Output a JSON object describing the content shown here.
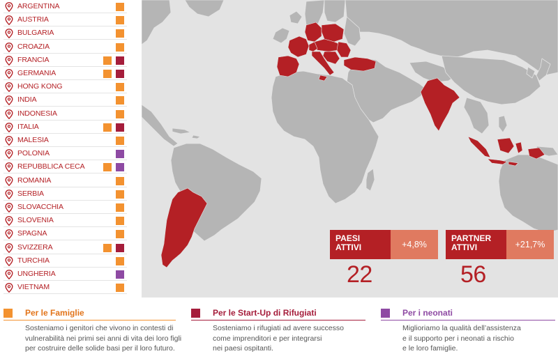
{
  "countries": [
    {
      "name": "ARGENTINA",
      "a": true,
      "b": null
    },
    {
      "name": "AUSTRIA",
      "a": true,
      "b": null
    },
    {
      "name": "BULGARIA",
      "a": true,
      "b": null
    },
    {
      "name": "CROAZIA",
      "a": true,
      "b": null
    },
    {
      "name": "FRANCIA",
      "a": true,
      "b": "refugee"
    },
    {
      "name": "GERMANIA",
      "a": true,
      "b": "refugee"
    },
    {
      "name": "HONG KONG",
      "a": true,
      "b": null
    },
    {
      "name": "INDIA",
      "a": true,
      "b": null
    },
    {
      "name": "INDONESIA",
      "a": true,
      "b": null
    },
    {
      "name": "ITALIA",
      "a": true,
      "b": "refugee"
    },
    {
      "name": "MALESIA",
      "a": true,
      "b": null
    },
    {
      "name": "POLONIA",
      "a": false,
      "b": "newborn"
    },
    {
      "name": "REPUBBLICA CECA",
      "a": true,
      "b": "newborn"
    },
    {
      "name": "ROMANIA",
      "a": true,
      "b": null
    },
    {
      "name": "SERBIA",
      "a": true,
      "b": null
    },
    {
      "name": "SLOVACCHIA",
      "a": true,
      "b": null
    },
    {
      "name": "SLOVENIA",
      "a": true,
      "b": null
    },
    {
      "name": "SPAGNA",
      "a": true,
      "b": null
    },
    {
      "name": "SVIZZERA",
      "a": true,
      "b": "refugee"
    },
    {
      "name": "TURCHIA",
      "a": true,
      "b": null
    },
    {
      "name": "UNGHERIA",
      "a": false,
      "b": "newborn"
    },
    {
      "name": "VIETNAM",
      "a": true,
      "b": null
    }
  ],
  "colors": {
    "families": "#f39230",
    "refugee": "#a51d3b",
    "newborn": "#8e4aa3",
    "accent_red": "#b42025",
    "accent_light": "#e07a60",
    "map_bg": "#e3e3e3",
    "land": "#b5b5b5"
  },
  "stats": {
    "paesi": {
      "label_1": "PAESI",
      "label_2": "ATTIVI",
      "change": "+4,8%",
      "value": "22"
    },
    "partner": {
      "label_1": "PARTNER",
      "label_2": "ATTIVI",
      "change": "+21,7%",
      "value": "56"
    }
  },
  "legend": [
    {
      "key": "families",
      "title": "Per le Famiglie",
      "lines": [
        "Sosteniamo i genitori che vivono in contesti di",
        "vulnerabilità nei primi sei anni di vita dei loro figli",
        "per costruire delle solide basi per il loro futuro."
      ]
    },
    {
      "key": "refugee",
      "title": "Per le Start-Up di Rifugiati",
      "lines": [
        "Sosteniamo i rifugiati ad avere successo",
        "come imprenditori e per integrarsi",
        "nei paesi ospitanti."
      ]
    },
    {
      "key": "newborn",
      "title": "Per i neonati",
      "lines": [
        "Miglioriamo la qualità dell’assistenza",
        "e il supporto per i neonati a rischio",
        "e le loro famiglie."
      ]
    }
  ]
}
